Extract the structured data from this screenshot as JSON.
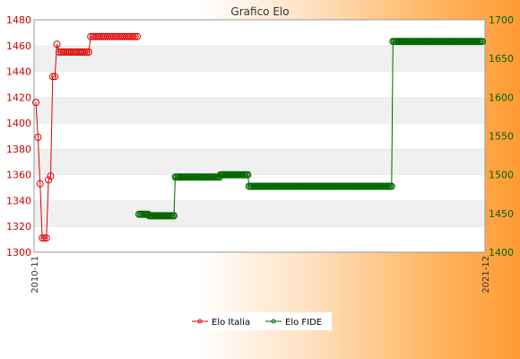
{
  "chart_data": {
    "type": "line",
    "title": "Grafico Elo",
    "xlabel": "",
    "ylabel": "",
    "x_tick_labels": [
      "2010-11",
      "2021-12"
    ],
    "y_left": {
      "lim": [
        1300,
        1480
      ],
      "ticks": [
        1300,
        1320,
        1340,
        1360,
        1380,
        1400,
        1420,
        1440,
        1460,
        1480
      ],
      "color": "#cc0000"
    },
    "y_right": {
      "lim": [
        1400,
        1700
      ],
      "ticks": [
        1400,
        1450,
        1500,
        1550,
        1600,
        1650,
        1700
      ],
      "color": "#006600"
    },
    "grid": true,
    "legend_position": "bottom-center",
    "series": [
      {
        "name": "Elo Italia",
        "axis": "left",
        "color": "#dd0000",
        "values": [
          1416,
          1389,
          1353,
          1311,
          1311,
          1311,
          1356,
          1359,
          1436,
          1436,
          1461,
          1455,
          1455,
          1455,
          1455,
          1455,
          1455,
          1455,
          1455,
          1455,
          1455,
          1455,
          1455,
          1455,
          1455,
          1455,
          1467,
          1467,
          1467,
          1467,
          1467,
          1467,
          1467,
          1467,
          1467,
          1467,
          1467,
          1467,
          1467,
          1467,
          1467,
          1467,
          1467,
          1467,
          1467,
          1467,
          1467,
          1467,
          1467
        ]
      },
      {
        "name": "Elo FIDE",
        "axis": "right",
        "color": "#006600",
        "values": [
          1449,
          1449,
          1449,
          1449,
          1449,
          1449,
          1449,
          1449,
          1447,
          1447,
          1447,
          1447,
          1447,
          1447,
          1447,
          1447,
          1447,
          1447,
          1447,
          1447,
          1447,
          1447,
          1447,
          1447,
          1447,
          1447,
          1447,
          1447,
          1497,
          1497,
          1497,
          1497,
          1497,
          1497,
          1497,
          1497,
          1497,
          1497,
          1497,
          1497,
          1497,
          1497,
          1497,
          1497,
          1497,
          1497,
          1497,
          1497,
          1497,
          1497,
          1497,
          1497,
          1497,
          1497,
          1497,
          1497,
          1497,
          1497,
          1497,
          1497,
          1497,
          1497,
          1497,
          1500,
          1500,
          1500,
          1500,
          1500,
          1500,
          1500,
          1500,
          1500,
          1500,
          1500,
          1500,
          1500,
          1500,
          1500,
          1500,
          1500,
          1500,
          1500,
          1500,
          1500,
          1500,
          1485,
          1485,
          1485,
          1485,
          1485,
          1485,
          1485,
          1485,
          1485,
          1485,
          1485,
          1485,
          1485,
          1485,
          1485,
          1485,
          1485,
          1485,
          1485,
          1485,
          1485,
          1485,
          1485,
          1485,
          1485,
          1485,
          1485,
          1485,
          1485,
          1485,
          1485,
          1485,
          1485,
          1485,
          1485,
          1485,
          1485,
          1485,
          1485,
          1485,
          1485,
          1485,
          1485,
          1485,
          1485,
          1485,
          1485,
          1485,
          1485,
          1485,
          1485,
          1485,
          1485,
          1485,
          1485,
          1485,
          1485,
          1485,
          1485,
          1485,
          1485,
          1485,
          1485,
          1485,
          1485,
          1485,
          1485,
          1485,
          1485,
          1485,
          1485,
          1485,
          1485,
          1485,
          1485,
          1485,
          1485,
          1485,
          1485,
          1485,
          1485,
          1485,
          1485,
          1485,
          1485,
          1485,
          1485,
          1485,
          1485,
          1485,
          1485,
          1485,
          1485,
          1485,
          1485,
          1485,
          1485,
          1485,
          1485,
          1485,
          1485,
          1485,
          1485,
          1485,
          1485,
          1485,
          1485,
          1485,
          1485,
          1485,
          1485,
          1672,
          1672,
          1672,
          1672,
          1672,
          1672,
          1672,
          1672,
          1672,
          1672,
          1672,
          1672,
          1672,
          1672,
          1672,
          1672,
          1672,
          1672,
          1672,
          1672,
          1672,
          1672,
          1672,
          1672,
          1672,
          1672,
          1672,
          1672,
          1672,
          1672,
          1672,
          1672,
          1672,
          1672,
          1672,
          1672,
          1672,
          1672,
          1672,
          1672,
          1672,
          1672,
          1672,
          1672,
          1672,
          1672,
          1672,
          1672,
          1672,
          1672,
          1672,
          1672,
          1672,
          1672,
          1672,
          1672,
          1672,
          1672,
          1672,
          1672,
          1672,
          1672,
          1672,
          1672,
          1672,
          1672,
          1672,
          1672,
          1672,
          1672
        ]
      }
    ]
  }
}
